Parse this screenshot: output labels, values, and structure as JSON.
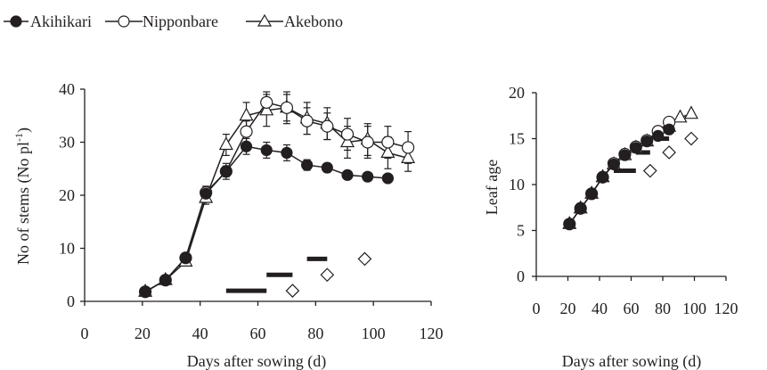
{
  "legend": {
    "items": [
      {
        "label": "Akihikari",
        "marker": "filled-circle"
      },
      {
        "label": "Nipponbare",
        "marker": "open-circle"
      },
      {
        "label": "Akebono",
        "marker": "open-triangle"
      }
    ]
  },
  "colors": {
    "ink": "#231f20",
    "bar": "#231f20",
    "open_fill": "#ffffff"
  },
  "chart_data": [
    {
      "type": "line",
      "ylabel": "No of stems (No pl",
      "ylabel_sup": "-1",
      "ylabel_tail": ")",
      "xlabel": "Days after sowing (d)",
      "xlim": [
        0,
        120
      ],
      "ylim": [
        0,
        40
      ],
      "xticks": [
        0,
        20,
        40,
        60,
        80,
        100,
        120
      ],
      "yticks": [
        0,
        10,
        20,
        30,
        40
      ],
      "grid": false,
      "legend_placement": "top-left (shared)",
      "series": [
        {
          "name": "Akihikari",
          "marker": "filled-circle",
          "x": [
            21,
            28,
            35,
            42,
            49,
            56,
            63,
            70,
            77,
            84,
            91,
            98,
            105
          ],
          "y": [
            1.8,
            4.0,
            8.2,
            20.3,
            24.5,
            29.2,
            28.5,
            28.0,
            25.7,
            25.2,
            23.8,
            23.5,
            23.2
          ],
          "err": [
            0,
            0,
            0,
            1.0,
            1.0,
            1.5,
            1.5,
            1.5,
            1.0,
            0.8,
            0.8,
            0.7,
            0.6
          ]
        },
        {
          "name": "Nipponbare",
          "marker": "open-circle",
          "x": [
            21,
            28,
            35,
            42,
            49,
            56,
            63,
            70,
            77,
            84,
            91,
            98,
            105,
            112
          ],
          "y": [
            1.8,
            4.0,
            8.2,
            20.5,
            24.5,
            32.0,
            37.5,
            36.5,
            34.0,
            33.0,
            31.5,
            30.0,
            30.0,
            29.0
          ],
          "err": [
            0,
            0,
            0,
            1.2,
            1.5,
            2.0,
            2.0,
            2.5,
            2.5,
            2.5,
            3.0,
            3.0,
            3.0,
            3.0
          ]
        },
        {
          "name": "Akebono",
          "marker": "open-triangle",
          "x": [
            21,
            28,
            35,
            42,
            49,
            56,
            63,
            70,
            77,
            84,
            91,
            98,
            105,
            112
          ],
          "y": [
            1.8,
            4.0,
            7.5,
            19.5,
            29.5,
            35.0,
            36.0,
            36.5,
            34.5,
            33.5,
            30.0,
            30.5,
            28.0,
            27.0
          ],
          "err": [
            0,
            0,
            0,
            1.2,
            2.0,
            2.5,
            3.0,
            3.0,
            3.0,
            3.0,
            3.0,
            3.0,
            3.0,
            2.5
          ]
        }
      ],
      "bars": [
        {
          "x_start": 49,
          "x_end": 63,
          "y": 2
        },
        {
          "x_start": 63,
          "x_end": 72,
          "y": 5
        },
        {
          "x_start": 77,
          "x_end": 84,
          "y": 8
        }
      ],
      "diamonds": [
        {
          "x": 72,
          "y": 2
        },
        {
          "x": 84,
          "y": 5
        },
        {
          "x": 97,
          "y": 8
        }
      ]
    },
    {
      "type": "line",
      "ylabel": "Leaf age",
      "xlabel": "Days after sowing (d)",
      "xlim": [
        0,
        120
      ],
      "ylim": [
        0,
        20
      ],
      "xticks": [
        0,
        20,
        40,
        60,
        80,
        100,
        120
      ],
      "yticks": [
        0,
        5,
        10,
        15,
        20
      ],
      "grid": false,
      "series": [
        {
          "name": "Akihikari",
          "marker": "filled-circle",
          "x": [
            21,
            28,
            35,
            42,
            49,
            56,
            63,
            70,
            77,
            84
          ],
          "y": [
            5.7,
            7.4,
            9.0,
            10.8,
            12.2,
            13.2,
            14.0,
            14.7,
            15.3,
            16.0
          ]
        },
        {
          "name": "Nipponbare",
          "marker": "open-circle",
          "x": [
            21,
            28,
            35,
            42,
            49,
            56,
            63,
            70,
            77,
            84
          ],
          "y": [
            5.7,
            7.4,
            9.0,
            10.8,
            12.3,
            13.3,
            14.1,
            14.8,
            15.8,
            16.8
          ]
        },
        {
          "name": "Akebono",
          "marker": "open-triangle",
          "x": [
            21,
            28,
            35,
            42,
            49,
            56,
            63,
            70,
            77,
            84,
            91,
            98
          ],
          "y": [
            5.7,
            7.4,
            9.0,
            10.8,
            12.2,
            13.2,
            14.0,
            14.7,
            15.5,
            16.3,
            17.3,
            17.7
          ]
        }
      ],
      "bars": [
        {
          "x_start": 49,
          "x_end": 63,
          "y": 11.5
        },
        {
          "x_start": 63,
          "x_end": 72,
          "y": 13.5
        },
        {
          "x_start": 77,
          "x_end": 84,
          "y": 15
        }
      ],
      "diamonds": [
        {
          "x": 72,
          "y": 11.5
        },
        {
          "x": 84,
          "y": 13.5
        },
        {
          "x": 98,
          "y": 15
        }
      ]
    }
  ]
}
